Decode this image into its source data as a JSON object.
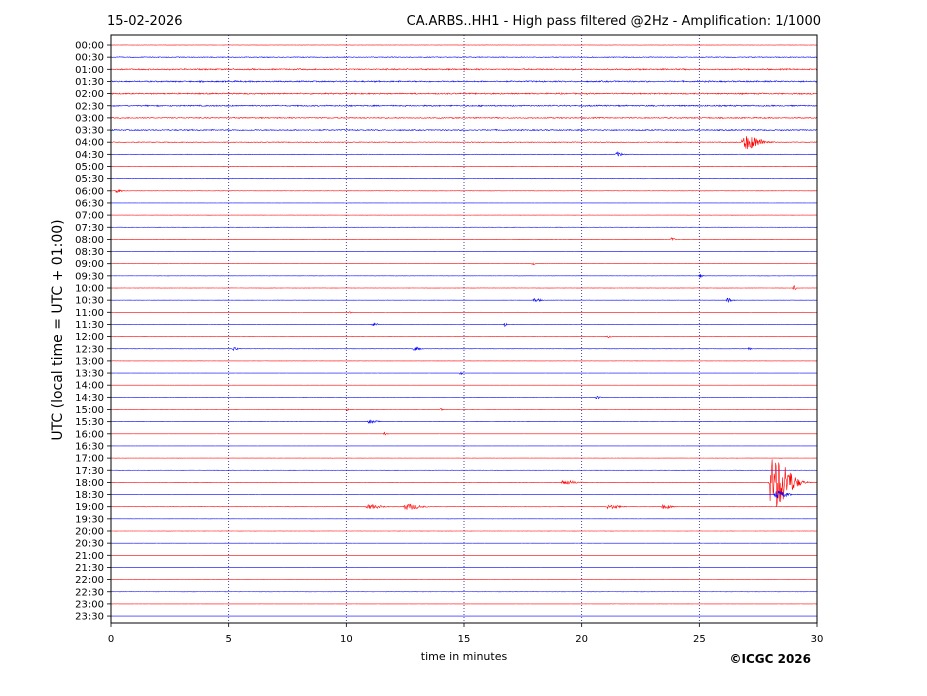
{
  "header": {
    "date": "15-02-2026",
    "station_title": "CA.ARBS..HH1 - High pass filtered @2Hz - Amplification: 1/1000"
  },
  "footer": {
    "copyright": "©ICGC 2026"
  },
  "chart_data": {
    "type": "line",
    "title": "CA.ARBS..HH1 - High pass filtered @2Hz - Amplification: 1/1000",
    "subtitle": "15-02-2026",
    "xlabel": "time in minutes",
    "ylabel": "UTC (local time = UTC + 01:00)",
    "xlim": [
      0,
      30
    ],
    "x_ticks": [
      0,
      5,
      10,
      15,
      20,
      25,
      30
    ],
    "grid": "vertical dotted lines at each 5 minutes",
    "trace_colors": [
      "#ff0000",
      "#0000ff"
    ],
    "rows": [
      {
        "label": "00:00",
        "noise": 0.1,
        "events": []
      },
      {
        "label": "00:30",
        "noise": 0.35,
        "events": []
      },
      {
        "label": "01:00",
        "noise": 0.55,
        "events": []
      },
      {
        "label": "01:30",
        "noise": 0.6,
        "events": []
      },
      {
        "label": "02:00",
        "noise": 0.55,
        "events": []
      },
      {
        "label": "02:30",
        "noise": 0.55,
        "events": []
      },
      {
        "label": "03:00",
        "noise": 0.45,
        "events": []
      },
      {
        "label": "03:30",
        "noise": 0.5,
        "events": []
      },
      {
        "label": "04:00",
        "noise": 0.3,
        "events": [
          {
            "t": 27.0,
            "amp": 7,
            "dur": 1.4
          }
        ]
      },
      {
        "label": "04:30",
        "noise": 0.15,
        "events": [
          {
            "t": 21.5,
            "amp": 2,
            "dur": 0.6
          }
        ]
      },
      {
        "label": "05:00",
        "noise": 0.15,
        "events": []
      },
      {
        "label": "05:30",
        "noise": 0.12,
        "events": []
      },
      {
        "label": "06:00",
        "noise": 0.12,
        "events": [
          {
            "t": 0.2,
            "amp": 2,
            "dur": 0.5
          }
        ]
      },
      {
        "label": "06:30",
        "noise": 0.05,
        "events": []
      },
      {
        "label": "07:00",
        "noise": 0.05,
        "events": []
      },
      {
        "label": "07:30",
        "noise": 0.05,
        "events": []
      },
      {
        "label": "08:00",
        "noise": 0.05,
        "events": [
          {
            "t": 23.8,
            "amp": 2,
            "dur": 0.3
          }
        ]
      },
      {
        "label": "08:30",
        "noise": 0.05,
        "events": []
      },
      {
        "label": "09:00",
        "noise": 0.05,
        "events": [
          {
            "t": 17.9,
            "amp": 2,
            "dur": 0.2
          }
        ]
      },
      {
        "label": "09:30",
        "noise": 0.05,
        "events": [
          {
            "t": 25.0,
            "amp": 2,
            "dur": 0.3
          }
        ]
      },
      {
        "label": "10:00",
        "noise": 0.05,
        "events": [
          {
            "t": 29.0,
            "amp": 5,
            "dur": 0.2
          }
        ]
      },
      {
        "label": "10:30",
        "noise": 0.05,
        "events": [
          {
            "t": 18.0,
            "amp": 2,
            "dur": 0.6
          },
          {
            "t": 26.2,
            "amp": 2,
            "dur": 0.5
          }
        ]
      },
      {
        "label": "11:00",
        "noise": 0.05,
        "events": [
          {
            "t": 10.1,
            "amp": 3,
            "dur": 0.2
          }
        ]
      },
      {
        "label": "11:30",
        "noise": 0.05,
        "events": [
          {
            "t": 11.1,
            "amp": 2,
            "dur": 0.5
          },
          {
            "t": 16.7,
            "amp": 3,
            "dur": 0.2
          }
        ]
      },
      {
        "label": "12:00",
        "noise": 0.05,
        "events": [
          {
            "t": 21.1,
            "amp": 2,
            "dur": 0.3
          }
        ]
      },
      {
        "label": "12:30",
        "noise": 0.08,
        "events": [
          {
            "t": 5.2,
            "amp": 2,
            "dur": 0.5
          },
          {
            "t": 12.9,
            "amp": 2,
            "dur": 0.6
          },
          {
            "t": 27.1,
            "amp": 2,
            "dur": 0.3
          }
        ]
      },
      {
        "label": "13:00",
        "noise": 0.05,
        "events": []
      },
      {
        "label": "13:30",
        "noise": 0.05,
        "events": [
          {
            "t": 14.8,
            "amp": 2,
            "dur": 0.3
          }
        ]
      },
      {
        "label": "14:00",
        "noise": 0.04,
        "events": []
      },
      {
        "label": "14:30",
        "noise": 0.04,
        "events": [
          {
            "t": 20.6,
            "amp": 3,
            "dur": 0.3
          }
        ]
      },
      {
        "label": "15:00",
        "noise": 0.04,
        "events": [
          {
            "t": 10.0,
            "amp": 2,
            "dur": 0.2
          },
          {
            "t": 14.0,
            "amp": 2,
            "dur": 0.2
          }
        ]
      },
      {
        "label": "15:30",
        "noise": 0.05,
        "events": [
          {
            "t": 11.0,
            "amp": 2,
            "dur": 0.8
          }
        ]
      },
      {
        "label": "16:00",
        "noise": 0.04,
        "events": [
          {
            "t": 11.6,
            "amp": 2,
            "dur": 0.3
          }
        ]
      },
      {
        "label": "16:30",
        "noise": 0.04,
        "events": []
      },
      {
        "label": "17:00",
        "noise": 0.04,
        "events": []
      },
      {
        "label": "17:30",
        "noise": 0.04,
        "events": []
      },
      {
        "label": "18:00",
        "noise": 0.06,
        "events": [
          {
            "t": 19.3,
            "amp": 2,
            "dur": 1.2
          },
          {
            "t": 28.2,
            "amp": 26,
            "dur": 1.6
          }
        ]
      },
      {
        "label": "18:30",
        "noise": 0.05,
        "events": [
          {
            "t": 28.3,
            "amp": 4,
            "dur": 1.0
          }
        ]
      },
      {
        "label": "19:00",
        "noise": 0.1,
        "events": [
          {
            "t": 11.0,
            "amp": 2,
            "dur": 1.2
          },
          {
            "t": 12.6,
            "amp": 3,
            "dur": 1.2
          },
          {
            "t": 21.2,
            "amp": 2,
            "dur": 1.0
          },
          {
            "t": 23.5,
            "amp": 2,
            "dur": 0.8
          }
        ]
      },
      {
        "label": "19:30",
        "noise": 0.04,
        "events": []
      },
      {
        "label": "20:00",
        "noise": 0.03,
        "events": []
      },
      {
        "label": "20:30",
        "noise": 0.03,
        "events": []
      },
      {
        "label": "21:00",
        "noise": 0.03,
        "events": []
      },
      {
        "label": "21:30",
        "noise": 0.03,
        "events": []
      },
      {
        "label": "22:00",
        "noise": 0.03,
        "events": []
      },
      {
        "label": "22:30",
        "noise": 0.03,
        "events": []
      },
      {
        "label": "23:00",
        "noise": 0.03,
        "events": []
      },
      {
        "label": "23:30",
        "noise": 0.03,
        "events": []
      }
    ]
  }
}
